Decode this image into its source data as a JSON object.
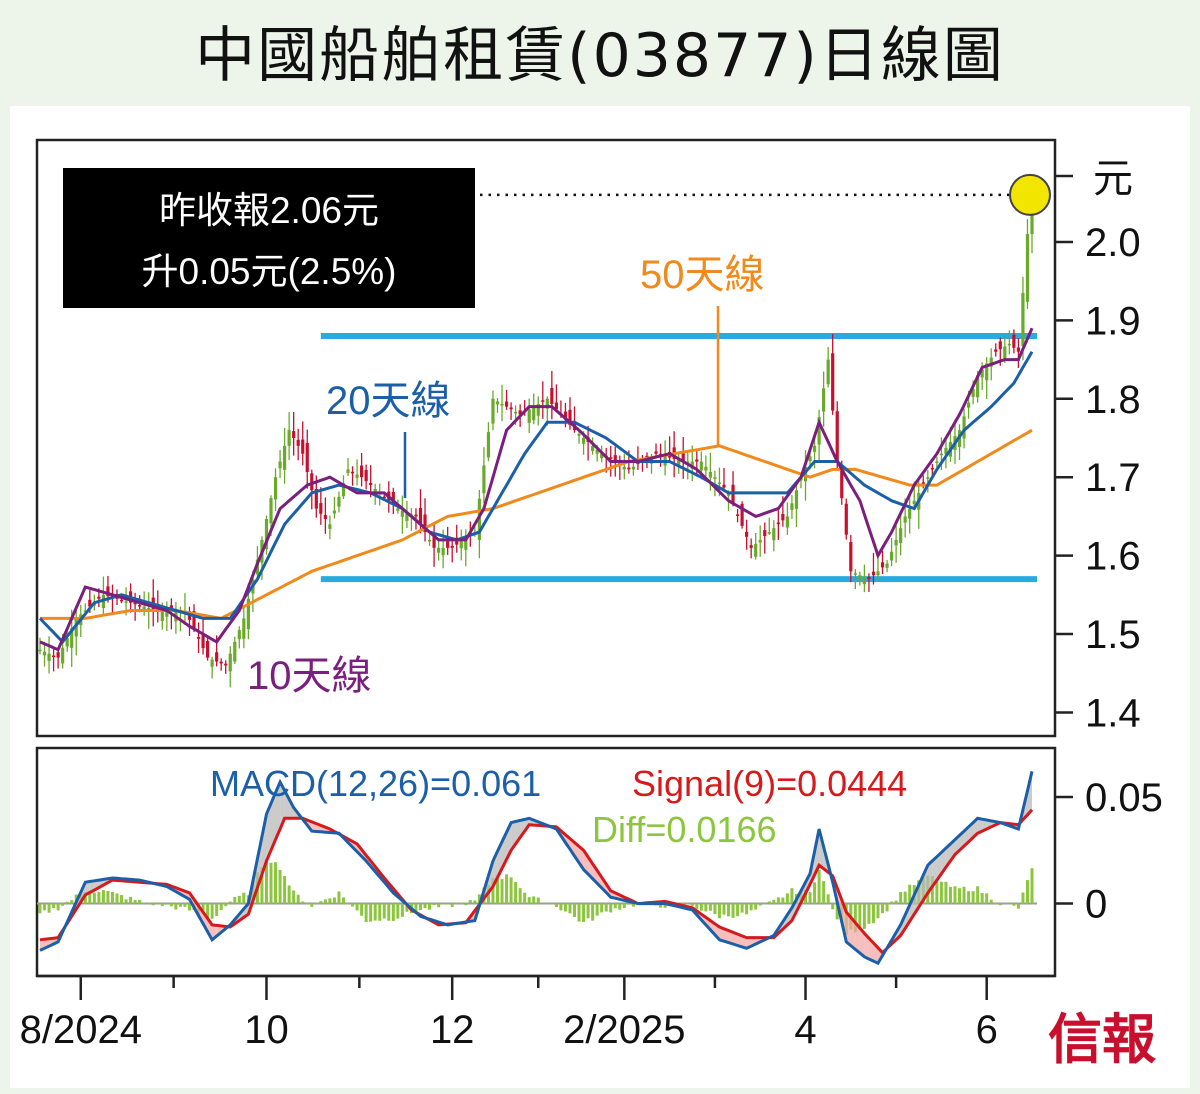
{
  "title": "中國船舶租賃(03877)日線圖",
  "info_box": {
    "line1": "昨收報2.06元",
    "line2": "升0.05元(2.5%)"
  },
  "brand": "信報",
  "annotations": {
    "ma10": "10天線",
    "ma20": "20天線",
    "ma50": "50天線"
  },
  "colors": {
    "up": "#6aaa2a",
    "down": "#c8102e",
    "ma10": "#7b1f7f",
    "ma20": "#1b5fa8",
    "ma50": "#f08a1c",
    "range_line": "#29abe2",
    "macd": "#1b5fa8",
    "signal": "#d7191c",
    "diff": "#8cc63f",
    "highlight": "#f2e600",
    "info_bg": "#000000"
  },
  "macd_labels": {
    "macd": "MACD(12,26)=0.061",
    "signal": "Signal(9)=0.0444",
    "diff": "Diff=0.0166"
  },
  "chart_data": [
    {
      "type": "candlestick",
      "y_unit_label": "元",
      "ylim": [
        1.37,
        2.13
      ],
      "y_ticks": [
        1.4,
        1.5,
        1.6,
        1.7,
        1.8,
        1.9,
        2.0
      ],
      "y_tick_labels": [
        "1.4",
        "1.5",
        "1.6",
        "1.7",
        "1.8",
        "1.9",
        "2.0"
      ],
      "x_ticks": [
        "8/2024",
        "10",
        "12",
        "2/2025",
        "4",
        "6"
      ],
      "num_sessions": 220,
      "x_tick_sessions": [
        9,
        50,
        91,
        129,
        169,
        209
      ],
      "last_close": 2.06,
      "change": 0.05,
      "change_pct": 2.5,
      "support_level": 1.57,
      "resistance_level": 1.88,
      "close_anchors": [
        [
          0,
          1.48
        ],
        [
          4,
          1.47
        ],
        [
          8,
          1.52
        ],
        [
          14,
          1.55
        ],
        [
          20,
          1.54
        ],
        [
          26,
          1.53
        ],
        [
          32,
          1.53
        ],
        [
          37,
          1.47
        ],
        [
          41,
          1.46
        ],
        [
          45,
          1.52
        ],
        [
          49,
          1.62
        ],
        [
          52,
          1.7
        ],
        [
          55,
          1.76
        ],
        [
          58,
          1.73
        ],
        [
          61,
          1.66
        ],
        [
          64,
          1.64
        ],
        [
          68,
          1.71
        ],
        [
          71,
          1.7
        ],
        [
          75,
          1.68
        ],
        [
          79,
          1.66
        ],
        [
          83,
          1.65
        ],
        [
          87,
          1.61
        ],
        [
          91,
          1.61
        ],
        [
          96,
          1.63
        ],
        [
          100,
          1.8
        ],
        [
          106,
          1.78
        ],
        [
          112,
          1.8
        ],
        [
          118,
          1.76
        ],
        [
          124,
          1.73
        ],
        [
          130,
          1.71
        ],
        [
          136,
          1.73
        ],
        [
          142,
          1.72
        ],
        [
          146,
          1.72
        ],
        [
          152,
          1.68
        ],
        [
          157,
          1.61
        ],
        [
          161,
          1.63
        ],
        [
          165,
          1.65
        ],
        [
          168,
          1.7
        ],
        [
          171,
          1.74
        ],
        [
          174,
          1.85
        ],
        [
          176,
          1.72
        ],
        [
          179,
          1.58
        ],
        [
          183,
          1.57
        ],
        [
          187,
          1.59
        ],
        [
          191,
          1.65
        ],
        [
          195,
          1.69
        ],
        [
          199,
          1.73
        ],
        [
          203,
          1.76
        ],
        [
          207,
          1.83
        ],
        [
          211,
          1.86
        ],
        [
          214,
          1.87
        ],
        [
          216,
          1.86
        ],
        [
          218,
          2.01
        ],
        [
          219,
          2.06
        ]
      ],
      "ma10_anchors": [
        [
          0,
          1.49
        ],
        [
          4,
          1.48
        ],
        [
          10,
          1.56
        ],
        [
          16,
          1.55
        ],
        [
          22,
          1.54
        ],
        [
          28,
          1.53
        ],
        [
          33,
          1.51
        ],
        [
          39,
          1.49
        ],
        [
          44,
          1.53
        ],
        [
          48,
          1.59
        ],
        [
          53,
          1.66
        ],
        [
          59,
          1.69
        ],
        [
          64,
          1.7
        ],
        [
          70,
          1.68
        ],
        [
          76,
          1.68
        ],
        [
          82,
          1.65
        ],
        [
          88,
          1.62
        ],
        [
          94,
          1.62
        ],
        [
          98,
          1.66
        ],
        [
          103,
          1.76
        ],
        [
          108,
          1.79
        ],
        [
          113,
          1.79
        ],
        [
          119,
          1.76
        ],
        [
          126,
          1.72
        ],
        [
          132,
          1.72
        ],
        [
          139,
          1.73
        ],
        [
          145,
          1.71
        ],
        [
          152,
          1.67
        ],
        [
          158,
          1.65
        ],
        [
          163,
          1.66
        ],
        [
          168,
          1.7
        ],
        [
          172,
          1.77
        ],
        [
          176,
          1.72
        ],
        [
          181,
          1.67
        ],
        [
          185,
          1.6
        ],
        [
          188,
          1.63
        ],
        [
          193,
          1.69
        ],
        [
          198,
          1.73
        ],
        [
          203,
          1.78
        ],
        [
          208,
          1.84
        ],
        [
          213,
          1.85
        ],
        [
          216,
          1.85
        ],
        [
          219,
          1.89
        ]
      ],
      "ma20_anchors": [
        [
          0,
          1.52
        ],
        [
          5,
          1.49
        ],
        [
          12,
          1.54
        ],
        [
          18,
          1.55
        ],
        [
          24,
          1.54
        ],
        [
          30,
          1.53
        ],
        [
          36,
          1.52
        ],
        [
          42,
          1.52
        ],
        [
          48,
          1.57
        ],
        [
          54,
          1.64
        ],
        [
          60,
          1.68
        ],
        [
          66,
          1.69
        ],
        [
          73,
          1.68
        ],
        [
          80,
          1.66
        ],
        [
          86,
          1.63
        ],
        [
          92,
          1.62
        ],
        [
          97,
          1.63
        ],
        [
          102,
          1.68
        ],
        [
          107,
          1.73
        ],
        [
          112,
          1.77
        ],
        [
          118,
          1.77
        ],
        [
          125,
          1.75
        ],
        [
          132,
          1.72
        ],
        [
          139,
          1.72
        ],
        [
          146,
          1.7
        ],
        [
          152,
          1.68
        ],
        [
          158,
          1.68
        ],
        [
          165,
          1.68
        ],
        [
          171,
          1.72
        ],
        [
          176,
          1.72
        ],
        [
          182,
          1.69
        ],
        [
          188,
          1.67
        ],
        [
          193,
          1.66
        ],
        [
          198,
          1.71
        ],
        [
          204,
          1.76
        ],
        [
          210,
          1.79
        ],
        [
          215,
          1.82
        ],
        [
          219,
          1.86
        ]
      ],
      "ma50_anchors": [
        [
          0,
          1.52
        ],
        [
          10,
          1.52
        ],
        [
          20,
          1.53
        ],
        [
          30,
          1.53
        ],
        [
          40,
          1.52
        ],
        [
          50,
          1.55
        ],
        [
          60,
          1.58
        ],
        [
          70,
          1.6
        ],
        [
          80,
          1.62
        ],
        [
          90,
          1.65
        ],
        [
          100,
          1.66
        ],
        [
          110,
          1.68
        ],
        [
          120,
          1.7
        ],
        [
          130,
          1.72
        ],
        [
          140,
          1.73
        ],
        [
          150,
          1.74
        ],
        [
          160,
          1.72
        ],
        [
          170,
          1.7
        ],
        [
          175,
          1.71
        ],
        [
          180,
          1.71
        ],
        [
          186,
          1.7
        ],
        [
          192,
          1.69
        ],
        [
          198,
          1.69
        ],
        [
          204,
          1.71
        ],
        [
          210,
          1.73
        ],
        [
          216,
          1.75
        ],
        [
          219,
          1.76
        ]
      ]
    },
    {
      "type": "line",
      "series_names": [
        "MACD(12,26)",
        "Signal(9)",
        "Diff"
      ],
      "ylim": [
        -0.034,
        0.073
      ],
      "y_ticks": [
        0,
        0.05
      ],
      "y_tick_labels": [
        "0",
        "0.05"
      ],
      "last_macd": 0.061,
      "last_signal": 0.0444,
      "last_diff": 0.0166,
      "macd_anchors": [
        [
          0,
          -0.022
        ],
        [
          4,
          -0.018
        ],
        [
          10,
          0.01
        ],
        [
          16,
          0.012
        ],
        [
          22,
          0.011
        ],
        [
          28,
          0.008
        ],
        [
          33,
          0.002
        ],
        [
          38,
          -0.017
        ],
        [
          42,
          -0.01
        ],
        [
          46,
          0.0
        ],
        [
          50,
          0.042
        ],
        [
          53,
          0.057
        ],
        [
          56,
          0.045
        ],
        [
          60,
          0.034
        ],
        [
          66,
          0.033
        ],
        [
          72,
          0.02
        ],
        [
          78,
          0.005
        ],
        [
          84,
          -0.006
        ],
        [
          90,
          -0.01
        ],
        [
          96,
          -0.008
        ],
        [
          100,
          0.02
        ],
        [
          104,
          0.038
        ],
        [
          108,
          0.04
        ],
        [
          114,
          0.035
        ],
        [
          120,
          0.016
        ],
        [
          126,
          0.003
        ],
        [
          132,
          0.0
        ],
        [
          138,
          0.0
        ],
        [
          144,
          -0.003
        ],
        [
          150,
          -0.017
        ],
        [
          156,
          -0.021
        ],
        [
          162,
          -0.015
        ],
        [
          166,
          -0.002
        ],
        [
          170,
          0.014
        ],
        [
          172,
          0.035
        ],
        [
          175,
          0.01
        ],
        [
          178,
          -0.018
        ],
        [
          182,
          -0.025
        ],
        [
          185,
          -0.028
        ],
        [
          190,
          -0.01
        ],
        [
          196,
          0.018
        ],
        [
          202,
          0.03
        ],
        [
          207,
          0.04
        ],
        [
          212,
          0.038
        ],
        [
          216,
          0.035
        ],
        [
          219,
          0.062
        ]
      ],
      "signal_anchors": [
        [
          0,
          -0.017
        ],
        [
          4,
          -0.016
        ],
        [
          10,
          0.004
        ],
        [
          16,
          0.011
        ],
        [
          22,
          0.01
        ],
        [
          28,
          0.009
        ],
        [
          33,
          0.005
        ],
        [
          38,
          -0.01
        ],
        [
          42,
          -0.011
        ],
        [
          46,
          -0.005
        ],
        [
          50,
          0.02
        ],
        [
          54,
          0.04
        ],
        [
          58,
          0.04
        ],
        [
          64,
          0.035
        ],
        [
          70,
          0.028
        ],
        [
          76,
          0.012
        ],
        [
          82,
          -0.003
        ],
        [
          88,
          -0.01
        ],
        [
          94,
          -0.009
        ],
        [
          100,
          0.008
        ],
        [
          104,
          0.025
        ],
        [
          108,
          0.037
        ],
        [
          114,
          0.036
        ],
        [
          120,
          0.025
        ],
        [
          126,
          0.006
        ],
        [
          132,
          0.0
        ],
        [
          138,
          0.001
        ],
        [
          144,
          -0.002
        ],
        [
          150,
          -0.011
        ],
        [
          156,
          -0.016
        ],
        [
          162,
          -0.016
        ],
        [
          166,
          -0.008
        ],
        [
          170,
          0.009
        ],
        [
          172,
          0.018
        ],
        [
          175,
          0.013
        ],
        [
          178,
          -0.004
        ],
        [
          182,
          -0.014
        ],
        [
          186,
          -0.023
        ],
        [
          190,
          -0.015
        ],
        [
          196,
          0.005
        ],
        [
          202,
          0.023
        ],
        [
          207,
          0.033
        ],
        [
          212,
          0.038
        ],
        [
          216,
          0.037
        ],
        [
          219,
          0.044
        ]
      ],
      "diff_anchors": [
        [
          0,
          -0.005
        ],
        [
          4,
          -0.002
        ],
        [
          10,
          0.006
        ],
        [
          14,
          0.006
        ],
        [
          22,
          0.001
        ],
        [
          28,
          -0.001
        ],
        [
          33,
          -0.003
        ],
        [
          38,
          -0.007
        ],
        [
          42,
          0.001
        ],
        [
          46,
          0.005
        ],
        [
          50,
          0.022
        ],
        [
          53,
          0.017
        ],
        [
          56,
          0.005
        ],
        [
          60,
          -0.001
        ],
        [
          66,
          0.005
        ],
        [
          72,
          -0.008
        ],
        [
          78,
          -0.007
        ],
        [
          84,
          -0.003
        ],
        [
          90,
          -0.001
        ],
        [
          96,
          0.001
        ],
        [
          100,
          0.012
        ],
        [
          104,
          0.013
        ],
        [
          108,
          0.003
        ],
        [
          114,
          -0.001
        ],
        [
          120,
          -0.009
        ],
        [
          126,
          -0.003
        ],
        [
          132,
          0.0
        ],
        [
          138,
          -0.001
        ],
        [
          144,
          -0.001
        ],
        [
          150,
          -0.006
        ],
        [
          156,
          -0.005
        ],
        [
          162,
          0.001
        ],
        [
          166,
          0.006
        ],
        [
          170,
          0.005
        ],
        [
          172,
          0.017
        ],
        [
          175,
          -0.003
        ],
        [
          178,
          -0.014
        ],
        [
          182,
          -0.011
        ],
        [
          186,
          -0.005
        ],
        [
          190,
          0.005
        ],
        [
          196,
          0.013
        ],
        [
          202,
          0.007
        ],
        [
          207,
          0.007
        ],
        [
          212,
          0.0
        ],
        [
          216,
          -0.002
        ],
        [
          219,
          0.0166
        ]
      ]
    }
  ]
}
